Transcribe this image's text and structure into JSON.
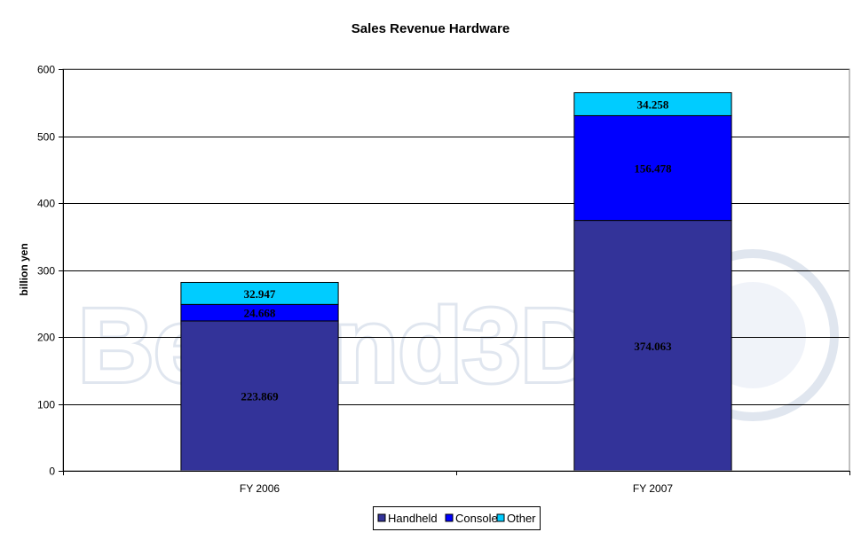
{
  "chart_data": {
    "type": "bar",
    "stacked": true,
    "title": "Sales Revenue Hardware",
    "xlabel": "",
    "ylabel": "billion yen",
    "ylim": [
      0,
      600
    ],
    "yticks": [
      0,
      100,
      200,
      300,
      400,
      500,
      600
    ],
    "grid": true,
    "legend_position": "bottom",
    "categories": [
      "FY 2006",
      "FY 2007"
    ],
    "series": [
      {
        "name": "Handheld",
        "color": "#333399",
        "values": [
          223.869,
          374.063
        ],
        "labels": [
          "223.869",
          "374.063"
        ]
      },
      {
        "name": "Console",
        "color": "#0000ff",
        "values": [
          24.668,
          156.478
        ],
        "labels": [
          "24.668",
          "156.478"
        ]
      },
      {
        "name": "Other",
        "color": "#00ccff",
        "values": [
          32.947,
          34.258
        ],
        "labels": [
          "32.947",
          "34.258"
        ]
      }
    ]
  },
  "watermark": {
    "text": "Beyond3D"
  }
}
